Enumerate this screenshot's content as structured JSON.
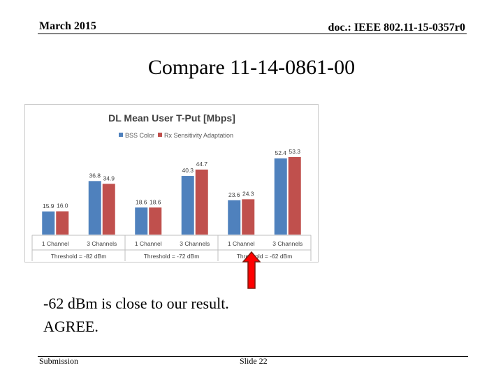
{
  "header": {
    "date": "March 2015",
    "doc_id": "doc.: IEEE 802.11-15-0357r0"
  },
  "slide": {
    "title": "Compare 11-14-0861-00",
    "body_line1": "-62 dBm is close to our result.",
    "body_line2": "AGREE."
  },
  "footer": {
    "left": "Submission",
    "center": "Slide 22"
  },
  "colors": {
    "bss_color": "#4f81bd",
    "rx_sensitivity": "#c0504d",
    "arrow_fill": "#ff0000",
    "arrow_stroke": "#7a1d10"
  },
  "icons": {
    "arrow": "up-arrow-icon"
  },
  "chart_data": {
    "type": "bar",
    "title": "DL Mean User T-Put [Mbps]",
    "categories": [
      "1 Channel",
      "3 Channels",
      "1 Channel",
      "3 Channels",
      "1 Channel",
      "3 Channels"
    ],
    "groups": [
      {
        "label": "Threshold = -82 dBm",
        "span": 2
      },
      {
        "label": "Threshold = -72 dBm",
        "span": 2
      },
      {
        "label": "Threshold = -62 dBm",
        "span": 2
      }
    ],
    "series": [
      {
        "name": "BSS Color",
        "values": [
          15.9,
          36.8,
          18.6,
          40.3,
          23.6,
          52.4
        ],
        "labels": [
          "15.9",
          "36.8",
          "18.6",
          "40.3",
          "23.6",
          "52.4"
        ]
      },
      {
        "name": "Rx Sensitivity Adaptation",
        "values": [
          16.0,
          34.9,
          18.6,
          44.7,
          24.3,
          53.3
        ],
        "labels": [
          "16.0",
          "34.9",
          "18.6",
          "44.7",
          "24.3",
          "53.3"
        ]
      }
    ],
    "ylim": [
      0,
      60
    ],
    "grid": false,
    "legend": "top-left"
  }
}
